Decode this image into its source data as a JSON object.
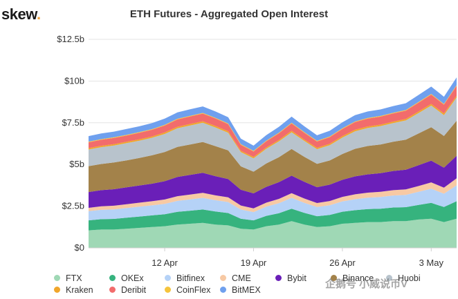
{
  "brand": {
    "name": "skew",
    "dot": "."
  },
  "watermark": "企鹅号 小威说币V",
  "chart_data": {
    "type": "area",
    "stacked": true,
    "title": "ETH Futures - Aggregated Open Interest",
    "xlabel": "",
    "ylabel": "",
    "ylim": [
      0,
      12.5
    ],
    "yticks": [
      {
        "value": 0,
        "label": "$0"
      },
      {
        "value": 2.5,
        "label": "$2.5b"
      },
      {
        "value": 5,
        "label": "$5b"
      },
      {
        "value": 7.5,
        "label": "$7.5b"
      },
      {
        "value": 10,
        "label": "$10b"
      },
      {
        "value": 12.5,
        "label": "$12.5b"
      }
    ],
    "x": [
      "Apr 6",
      "Apr 7",
      "Apr 8",
      "Apr 9",
      "Apr 10",
      "Apr 11",
      "Apr 12",
      "Apr 13",
      "Apr 14",
      "Apr 15",
      "Apr 16",
      "Apr 17",
      "Apr 18",
      "Apr 19",
      "Apr 20",
      "Apr 21",
      "Apr 22",
      "Apr 23",
      "Apr 24",
      "Apr 25",
      "Apr 26",
      "Apr 27",
      "Apr 28",
      "Apr 29",
      "Apr 30",
      "May 1",
      "May 2",
      "May 3",
      "May 4",
      "May 5"
    ],
    "xticks": [
      {
        "index": 6,
        "label": "12 Apr"
      },
      {
        "index": 13,
        "label": "19 Apr"
      },
      {
        "index": 20,
        "label": "26 Apr"
      },
      {
        "index": 27,
        "label": "3 May"
      }
    ],
    "grid": true,
    "legend_position": "bottom",
    "series": [
      {
        "name": "FTX",
        "color": "#9fd8b5",
        "values": [
          1.05,
          1.1,
          1.1,
          1.15,
          1.2,
          1.25,
          1.3,
          1.4,
          1.45,
          1.5,
          1.4,
          1.35,
          1.15,
          1.1,
          1.3,
          1.4,
          1.6,
          1.4,
          1.25,
          1.3,
          1.45,
          1.5,
          1.55,
          1.55,
          1.6,
          1.6,
          1.7,
          1.75,
          1.55,
          1.75
        ]
      },
      {
        "name": "OKEx",
        "color": "#36b37e",
        "values": [
          0.6,
          0.62,
          0.64,
          0.66,
          0.68,
          0.7,
          0.72,
          0.76,
          0.78,
          0.8,
          0.78,
          0.74,
          0.6,
          0.55,
          0.62,
          0.68,
          0.75,
          0.7,
          0.65,
          0.68,
          0.72,
          0.76,
          0.78,
          0.8,
          0.82,
          0.84,
          0.88,
          0.95,
          0.9,
          1.05
        ]
      },
      {
        "name": "Bitfinex",
        "color": "#b5d2f7",
        "values": [
          0.55,
          0.56,
          0.57,
          0.58,
          0.59,
          0.6,
          0.62,
          0.66,
          0.68,
          0.7,
          0.68,
          0.66,
          0.55,
          0.5,
          0.55,
          0.6,
          0.65,
          0.6,
          0.55,
          0.58,
          0.62,
          0.66,
          0.68,
          0.7,
          0.72,
          0.74,
          0.78,
          0.85,
          0.8,
          0.95
        ]
      },
      {
        "name": "CME",
        "color": "#f7c9a4",
        "values": [
          0.2,
          0.21,
          0.22,
          0.23,
          0.24,
          0.25,
          0.26,
          0.28,
          0.29,
          0.3,
          0.29,
          0.28,
          0.24,
          0.22,
          0.24,
          0.26,
          0.28,
          0.26,
          0.24,
          0.25,
          0.27,
          0.29,
          0.3,
          0.31,
          0.32,
          0.33,
          0.35,
          0.38,
          0.36,
          0.42
        ]
      },
      {
        "name": "Bybit",
        "color": "#6a1fb8",
        "values": [
          0.95,
          0.97,
          0.99,
          1.01,
          1.03,
          1.05,
          1.1,
          1.15,
          1.18,
          1.2,
          1.15,
          1.1,
          0.95,
          0.9,
          0.95,
          1.0,
          1.05,
          1.0,
          0.95,
          0.98,
          1.02,
          1.08,
          1.1,
          1.12,
          1.15,
          1.18,
          1.25,
          1.3,
          1.2,
          1.35
        ]
      },
      {
        "name": "Binance",
        "color": "#a3824a",
        "values": [
          1.55,
          1.57,
          1.6,
          1.62,
          1.65,
          1.7,
          1.75,
          1.8,
          1.82,
          1.85,
          1.8,
          1.72,
          1.4,
          1.3,
          1.4,
          1.5,
          1.6,
          1.5,
          1.4,
          1.45,
          1.55,
          1.65,
          1.7,
          1.72,
          1.75,
          1.8,
          1.9,
          2.0,
          1.9,
          2.1
        ]
      },
      {
        "name": "Huobi",
        "color": "#b8c3cc",
        "values": [
          1.0,
          1.01,
          1.02,
          1.03,
          1.04,
          1.05,
          1.08,
          1.12,
          1.14,
          1.15,
          1.12,
          1.05,
          0.85,
          0.8,
          0.88,
          0.95,
          1.0,
          0.95,
          0.88,
          0.92,
          0.98,
          1.05,
          1.08,
          1.1,
          1.12,
          1.15,
          1.22,
          1.3,
          1.25,
          1.4
        ]
      },
      {
        "name": "Kraken",
        "color": "#f0a62b",
        "values": [
          0.08,
          0.08,
          0.08,
          0.08,
          0.08,
          0.08,
          0.09,
          0.09,
          0.09,
          0.09,
          0.09,
          0.09,
          0.08,
          0.08,
          0.08,
          0.08,
          0.09,
          0.08,
          0.08,
          0.08,
          0.09,
          0.09,
          0.09,
          0.09,
          0.09,
          0.09,
          0.1,
          0.1,
          0.1,
          0.1
        ]
      },
      {
        "name": "Deribit",
        "color": "#f26c6c",
        "values": [
          0.35,
          0.36,
          0.37,
          0.38,
          0.39,
          0.4,
          0.42,
          0.44,
          0.45,
          0.46,
          0.45,
          0.43,
          0.36,
          0.33,
          0.37,
          0.4,
          0.44,
          0.41,
          0.38,
          0.4,
          0.43,
          0.46,
          0.47,
          0.48,
          0.49,
          0.5,
          0.53,
          0.56,
          0.53,
          0.6
        ]
      },
      {
        "name": "CoinFlex",
        "color": "#f5c43c",
        "values": [
          0.04,
          0.04,
          0.04,
          0.04,
          0.04,
          0.04,
          0.04,
          0.04,
          0.04,
          0.04,
          0.04,
          0.04,
          0.04,
          0.04,
          0.04,
          0.04,
          0.04,
          0.04,
          0.04,
          0.04,
          0.04,
          0.04,
          0.04,
          0.04,
          0.04,
          0.04,
          0.04,
          0.04,
          0.04,
          0.04
        ]
      },
      {
        "name": "BitMEX",
        "color": "#6fa0ee",
        "values": [
          0.33,
          0.34,
          0.34,
          0.35,
          0.35,
          0.36,
          0.37,
          0.38,
          0.39,
          0.39,
          0.38,
          0.37,
          0.33,
          0.31,
          0.33,
          0.35,
          0.37,
          0.35,
          0.33,
          0.34,
          0.36,
          0.38,
          0.39,
          0.39,
          0.4,
          0.4,
          0.42,
          0.44,
          0.43,
          0.46
        ]
      }
    ]
  }
}
